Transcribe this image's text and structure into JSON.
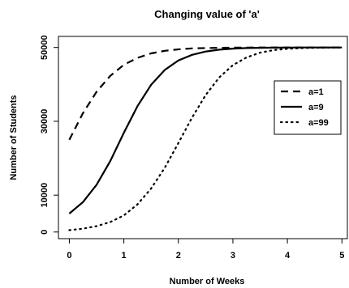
{
  "chart_data": {
    "type": "line",
    "title": "Changing value of 'a'",
    "xlabel": "Number of Weeks",
    "ylabel": "Number of Students",
    "xlim": [
      -0.2,
      5.1
    ],
    "ylim": [
      -1800,
      53000
    ],
    "xticks": [
      "0",
      "1",
      "2",
      "3",
      "4",
      "5"
    ],
    "yticks": [
      "0",
      "10000",
      "30000",
      "50000"
    ],
    "legend_position": "right",
    "series": [
      {
        "name": "a=1",
        "style": "dashed",
        "x": [
          0,
          0.25,
          0.5,
          0.75,
          1,
          1.25,
          1.5,
          1.75,
          2,
          2.25,
          2.5,
          2.75,
          3,
          3.25,
          3.5,
          3.75,
          4,
          4.25,
          4.5,
          4.75,
          5
        ],
        "y": [
          25000,
          32200,
          38000,
          42300,
          45300,
          47200,
          48400,
          49100,
          49500,
          49750,
          49850,
          49920,
          49960,
          49980,
          49990,
          49995,
          50000,
          50000,
          50000,
          50000,
          50000
        ]
      },
      {
        "name": "a=9",
        "style": "solid",
        "x": [
          0,
          0.25,
          0.5,
          0.75,
          1,
          1.25,
          1.5,
          1.75,
          2,
          2.25,
          2.5,
          2.75,
          3,
          3.25,
          3.5,
          3.75,
          4,
          4.25,
          4.5,
          4.75,
          5
        ],
        "y": [
          5000,
          8100,
          12800,
          19200,
          26900,
          34100,
          39900,
          43900,
          46500,
          48000,
          48900,
          49400,
          49700,
          49850,
          49920,
          49960,
          49980,
          49990,
          50000,
          50000,
          50000
        ]
      },
      {
        "name": "a=99",
        "style": "dotted",
        "x": [
          0,
          0.25,
          0.5,
          0.75,
          1,
          1.25,
          1.5,
          1.75,
          2,
          2.25,
          2.5,
          2.75,
          3,
          3.25,
          3.5,
          3.75,
          4,
          4.25,
          4.5,
          4.75,
          5
        ],
        "y": [
          500,
          900,
          1600,
          2700,
          4500,
          7500,
          11800,
          17400,
          24100,
          31000,
          37100,
          41900,
          45200,
          47300,
          48600,
          49300,
          49650,
          49830,
          49920,
          49960,
          50000
        ]
      }
    ]
  }
}
